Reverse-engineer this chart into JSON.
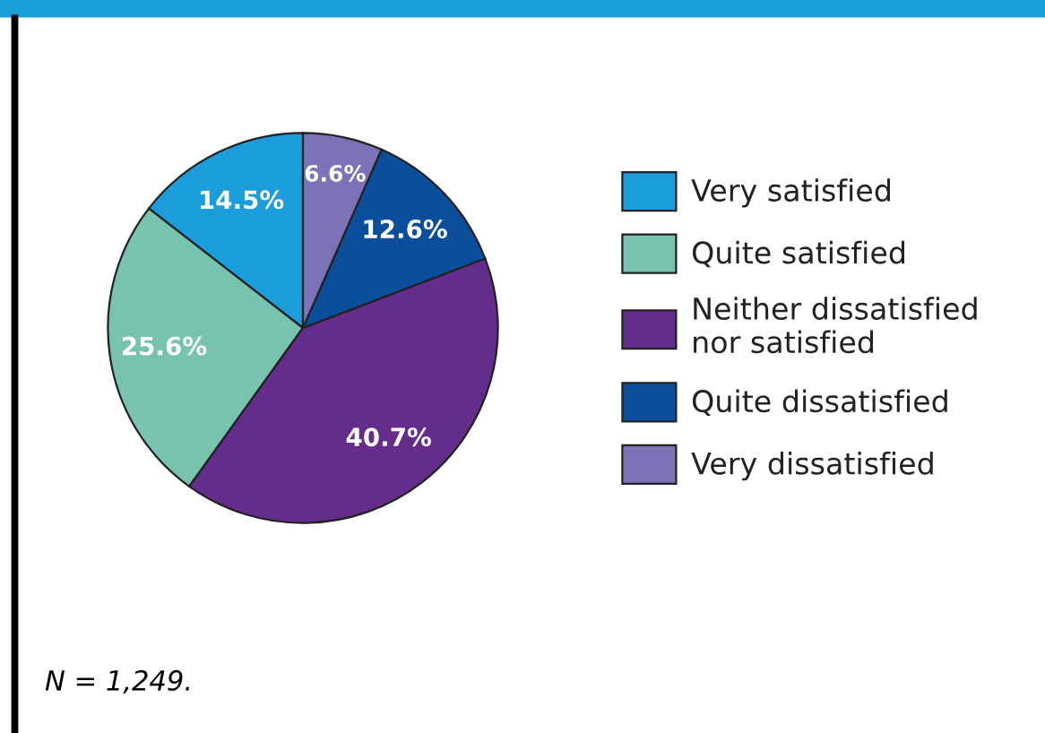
{
  "chart_data": {
    "type": "pie",
    "categories": [
      "Very satisfied",
      "Quite satisfied",
      "Neither dissatisfied\nnor satisfied",
      "Quite dissatisfied",
      "Very dissatisfied"
    ],
    "values": [
      14.5,
      25.6,
      40.7,
      12.6,
      6.6
    ],
    "colors": [
      "#1b9ddb",
      "#77c3b0",
      "#642d8c",
      "#0b4f9c",
      "#7b72b8"
    ],
    "value_labels": [
      "14.5%",
      "25.6%",
      "40.7%",
      "12.6%",
      "6.6%"
    ],
    "legend": "right",
    "annotations": [
      "N = 1,249."
    ]
  }
}
